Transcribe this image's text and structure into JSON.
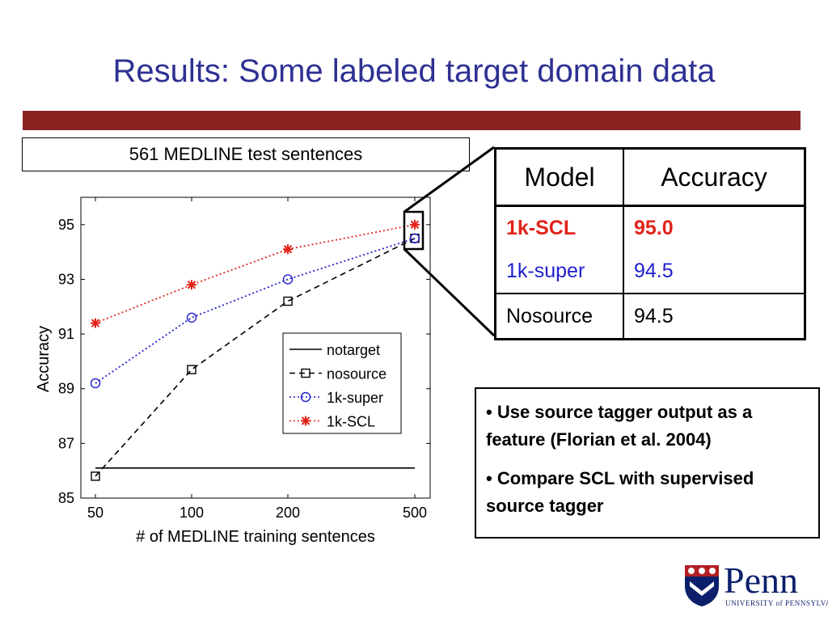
{
  "slide": {
    "title": "Results: Some labeled target domain data",
    "chart_heading": "561 MEDLINE test sentences"
  },
  "colors": {
    "title": "#2e3192",
    "bar": "#8c2323",
    "scl": "#e2231a",
    "super": "#1f1fcf",
    "nosource": "#000000"
  },
  "chart_data": {
    "type": "line",
    "x": [
      "50",
      "100",
      "200",
      "500"
    ],
    "xlabel": "# of MEDLINE training sentences",
    "ylabel": "Accuracy",
    "ylim": [
      85,
      96
    ],
    "yticks": [
      85,
      87,
      89,
      91,
      93,
      95
    ],
    "legend_position": "center-right",
    "series": [
      {
        "name": "notarget",
        "values": [
          86.1,
          86.1,
          86.1,
          86.1
        ],
        "style": "solid",
        "marker": "none",
        "color": "#000000"
      },
      {
        "name": "nosource",
        "values": [
          85.8,
          89.7,
          92.2,
          94.5
        ],
        "style": "dashed",
        "marker": "square",
        "color": "#000000"
      },
      {
        "name": "1k-super",
        "values": [
          89.2,
          91.6,
          93.0,
          94.5
        ],
        "style": "dotted",
        "marker": "circle",
        "color": "#1f1fcf"
      },
      {
        "name": "1k-SCL",
        "values": [
          91.4,
          92.8,
          94.1,
          95.0
        ],
        "style": "dotted",
        "marker": "star",
        "color": "#e2231a"
      }
    ]
  },
  "table": {
    "headers": [
      "Model",
      "Accuracy"
    ],
    "rows": [
      {
        "model": "1k-SCL",
        "accuracy": "95.0"
      },
      {
        "model": "1k-super",
        "accuracy": "94.5"
      },
      {
        "model": "Nosource",
        "accuracy": "94.5"
      }
    ]
  },
  "notes": [
    "• Use source tagger output as a feature (Florian et al. 2004)",
    "• Compare SCL with supervised source tagger"
  ],
  "logo": {
    "word": "Penn",
    "subtitle": "UNIVERSITY of PENNSYLVANIA"
  }
}
